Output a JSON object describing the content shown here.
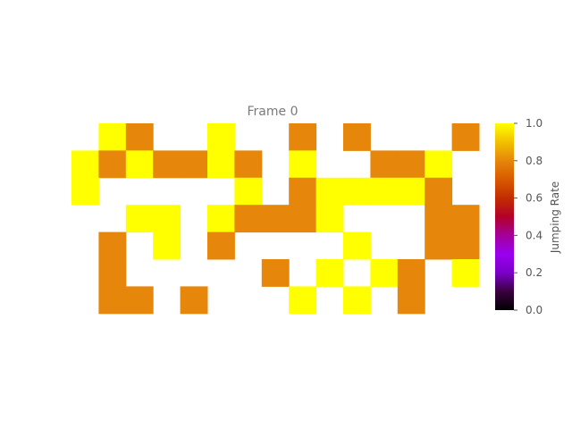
{
  "chart_data": {
    "type": "heatmap",
    "title": "Frame 0",
    "colorbar": {
      "label": "Jumping Rate",
      "range": [
        0.0,
        1.0
      ],
      "ticks": [
        "0.0",
        "0.2",
        "0.4",
        "0.6",
        "0.8",
        "1.0"
      ],
      "colormap": "gnuplot"
    },
    "rows": 7,
    "cols": 15,
    "empty_value": null,
    "values": [
      [
        null,
        1.0,
        0.8,
        null,
        null,
        1.0,
        null,
        null,
        0.8,
        null,
        0.8,
        null,
        null,
        null,
        0.8
      ],
      [
        1.0,
        0.8,
        1.0,
        0.8,
        0.8,
        1.0,
        0.8,
        null,
        1.0,
        null,
        null,
        0.8,
        0.8,
        1.0,
        null
      ],
      [
        1.0,
        null,
        null,
        null,
        null,
        null,
        1.0,
        null,
        0.8,
        1.0,
        1.0,
        1.0,
        1.0,
        0.8,
        null
      ],
      [
        null,
        null,
        1.0,
        1.0,
        null,
        1.0,
        0.8,
        0.8,
        0.8,
        1.0,
        null,
        null,
        null,
        0.8,
        0.8
      ],
      [
        null,
        0.8,
        null,
        1.0,
        null,
        0.8,
        null,
        null,
        null,
        null,
        1.0,
        null,
        null,
        0.8,
        0.8
      ],
      [
        null,
        0.8,
        null,
        null,
        null,
        null,
        null,
        0.8,
        null,
        1.0,
        null,
        1.0,
        0.8,
        null,
        1.0
      ],
      [
        null,
        0.8,
        0.8,
        null,
        0.8,
        null,
        null,
        null,
        1.0,
        null,
        1.0,
        null,
        0.8,
        null,
        null
      ]
    ],
    "grid": false,
    "legend": "right"
  }
}
